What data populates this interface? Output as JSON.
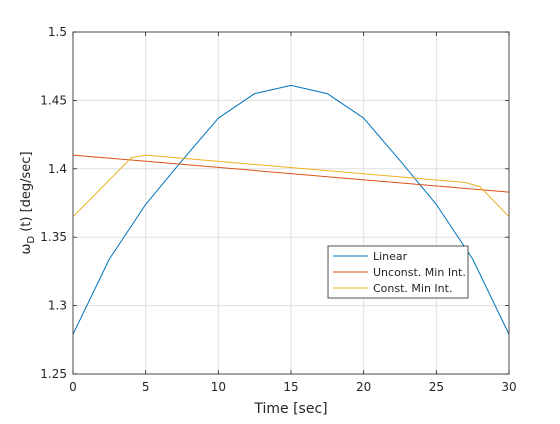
{
  "chart_data": {
    "type": "line",
    "title": "",
    "xlabel": "Time [sec]",
    "ylabel_main": "ω",
    "ylabel_sub": "D",
    "ylabel_rest": " (t) [deg/sec]",
    "xlim": [
      0,
      30
    ],
    "ylim": [
      1.25,
      1.5
    ],
    "xticks": [
      0,
      5,
      10,
      15,
      20,
      25,
      30
    ],
    "xtick_labels": [
      "0",
      "5",
      "10",
      "15",
      "20",
      "25",
      "30"
    ],
    "yticks": [
      1.25,
      1.3,
      1.35,
      1.4,
      1.45,
      1.5
    ],
    "ytick_labels": [
      "1.25",
      "1.3",
      "1.35",
      "1.4",
      "1.45",
      "1.5"
    ],
    "grid": true,
    "legend_position": "lower-right",
    "series": [
      {
        "name": "Linear",
        "color": "#0072BD",
        "x": [
          0,
          2.5,
          5,
          7.5,
          10,
          12.5,
          15,
          17.5,
          20,
          22.5,
          25,
          27.5,
          30
        ],
        "y": [
          1.279,
          1.334,
          1.374,
          1.406,
          1.437,
          1.455,
          1.461,
          1.455,
          1.437,
          1.406,
          1.374,
          1.334,
          1.279
        ]
      },
      {
        "name": "Unconst. Min Int.",
        "color": "#D95319",
        "x": [
          0,
          30
        ],
        "y": [
          1.41,
          1.383
        ]
      },
      {
        "name": "Const. Min Int.",
        "color": "#EDB120",
        "x": [
          0,
          4,
          5,
          27,
          28,
          30
        ],
        "y": [
          1.365,
          1.408,
          1.41,
          1.39,
          1.387,
          1.365
        ]
      }
    ]
  }
}
